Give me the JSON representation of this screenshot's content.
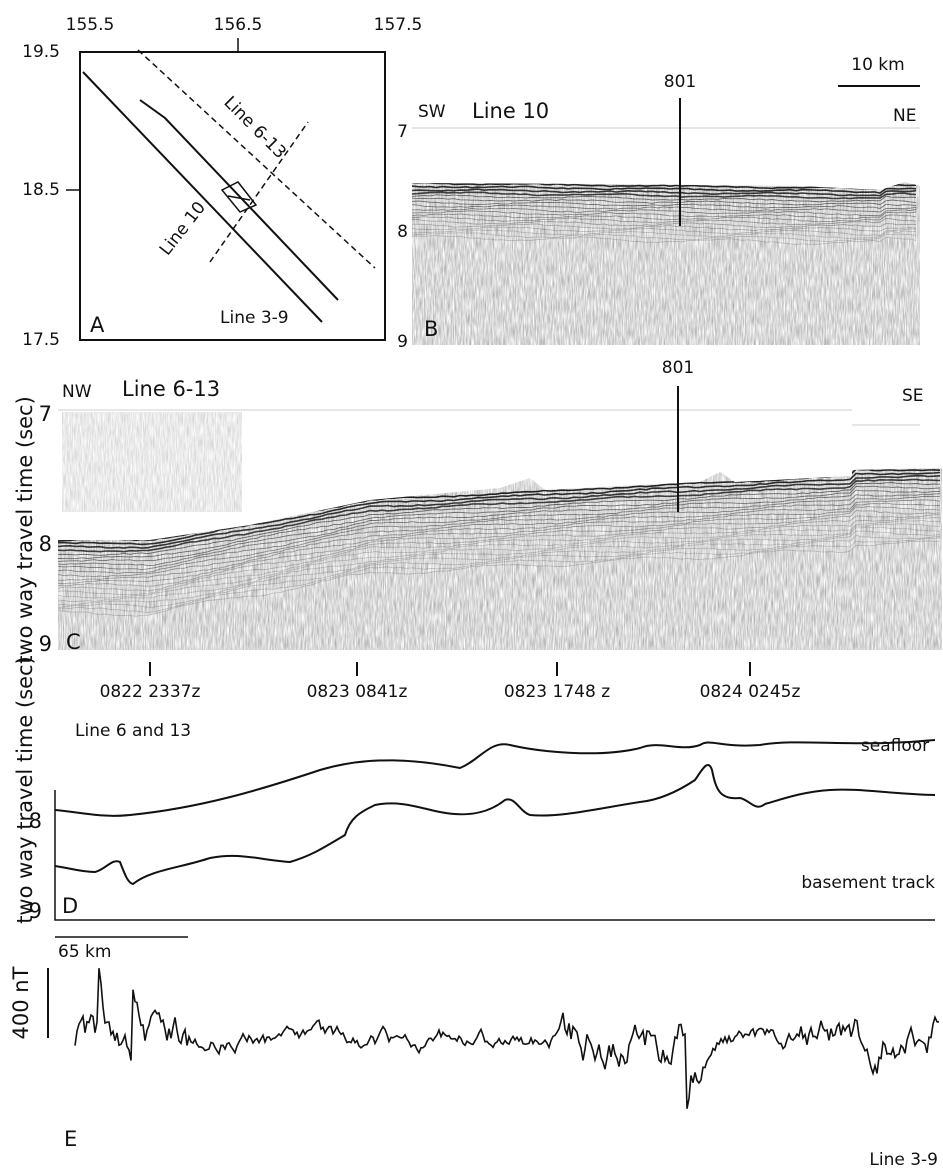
{
  "panel_a": {
    "lon_labels": [
      "155.5",
      "156.5",
      "157.5"
    ],
    "lat_labels": [
      "19.5",
      "18.5",
      "17.5"
    ],
    "line_labels": [
      "Line 6-13",
      "Line 10",
      "Line 3-9"
    ],
    "letter": "A"
  },
  "panel_b": {
    "scale": "10 km",
    "site": "801",
    "left_dir": "SW",
    "title": "Line 10",
    "right_dir": "NE",
    "y_labels": [
      "7",
      "8",
      "9"
    ],
    "letter": "B"
  },
  "panel_c": {
    "site": "801",
    "left_dir": "NW",
    "title": "Line 6-13",
    "right_dir": "SE",
    "y_axis_label": "two way travel time (sec)",
    "y_labels": [
      "7",
      "8",
      "9"
    ],
    "letter": "C",
    "time_labels": [
      "0822 2337z",
      "0823 0841z",
      "0823 1748 z",
      "0824 0245z"
    ]
  },
  "panel_d": {
    "title": "Line 6 and 13",
    "y_axis_label": "two way travel time (sec)",
    "top_curve_label": "seafloor",
    "y_labels": [
      "8",
      "9"
    ],
    "bottom_curve_label": "basement track",
    "letter": "D",
    "scale": "65 km"
  },
  "panel_e": {
    "y_scale_label": "400 nT",
    "letter": "E",
    "line_label": "Line 3-9"
  }
}
